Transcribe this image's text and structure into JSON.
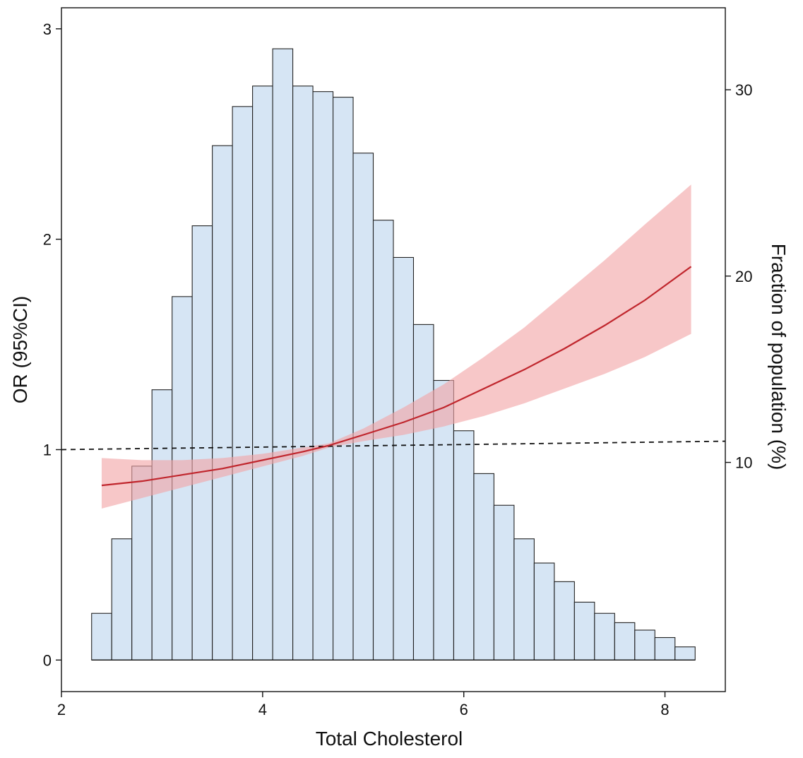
{
  "chart_data": {
    "type": "bar",
    "title": "",
    "xlabel": "Total Cholesterol",
    "ylabel": "OR (95%CI)",
    "y2label": "Fraction of population (%)",
    "xlim": [
      2,
      8.6
    ],
    "ylim": [
      -0.15,
      3.1
    ],
    "y2lim": [
      -2.3,
      34.4
    ],
    "xticks": [
      2,
      4,
      6,
      8
    ],
    "yticks": [
      0,
      1,
      2,
      3
    ],
    "y2ticks": [
      10,
      20,
      30
    ],
    "grid": false,
    "reference_line": {
      "y": 1,
      "style": "dashed",
      "y_end": 1.04
    },
    "histogram": {
      "name": "Fraction of population (%)",
      "bin_width": 0.2,
      "bin_start": [
        2.3,
        2.5,
        2.7,
        2.9,
        3.1,
        3.3,
        3.5,
        3.7,
        3.9,
        4.1,
        4.3,
        4.5,
        4.7,
        4.9,
        5.1,
        5.3,
        5.5,
        5.7,
        5.9,
        6.1,
        6.3,
        6.5,
        6.7,
        6.9,
        7.1,
        7.3,
        7.5,
        7.7,
        7.9,
        8.1
      ],
      "values": [
        1.9,
        5.9,
        9.8,
        13.9,
        18.9,
        22.7,
        27.0,
        29.1,
        30.2,
        32.2,
        30.2,
        29.9,
        29.6,
        26.6,
        23.0,
        21.0,
        17.4,
        14.4,
        11.7,
        9.4,
        7.7,
        5.9,
        4.6,
        3.6,
        2.5,
        1.9,
        1.4,
        1.0,
        0.6,
        0.1
      ],
      "fill": "#d6e5f4",
      "stroke": "#222222"
    },
    "series": [
      {
        "type": "line",
        "color": "#c0262d",
        "band_color": "#f2a4a6",
        "x": [
          2.4,
          2.8,
          3.2,
          3.6,
          4.0,
          4.4,
          4.66,
          5.0,
          5.4,
          5.8,
          6.2,
          6.6,
          7.0,
          7.4,
          7.8,
          8.26
        ],
        "y": [
          0.83,
          0.85,
          0.88,
          0.91,
          0.95,
          0.99,
          1.02,
          1.07,
          1.13,
          1.2,
          1.29,
          1.38,
          1.48,
          1.59,
          1.71,
          1.87
        ],
        "lower": [
          0.72,
          0.77,
          0.82,
          0.87,
          0.92,
          0.97,
          1.01,
          1.04,
          1.07,
          1.11,
          1.16,
          1.22,
          1.29,
          1.36,
          1.44,
          1.55
        ],
        "upper": [
          0.96,
          0.95,
          0.95,
          0.96,
          0.98,
          1.01,
          1.03,
          1.1,
          1.2,
          1.31,
          1.44,
          1.58,
          1.74,
          1.9,
          2.07,
          2.26
        ]
      }
    ]
  }
}
